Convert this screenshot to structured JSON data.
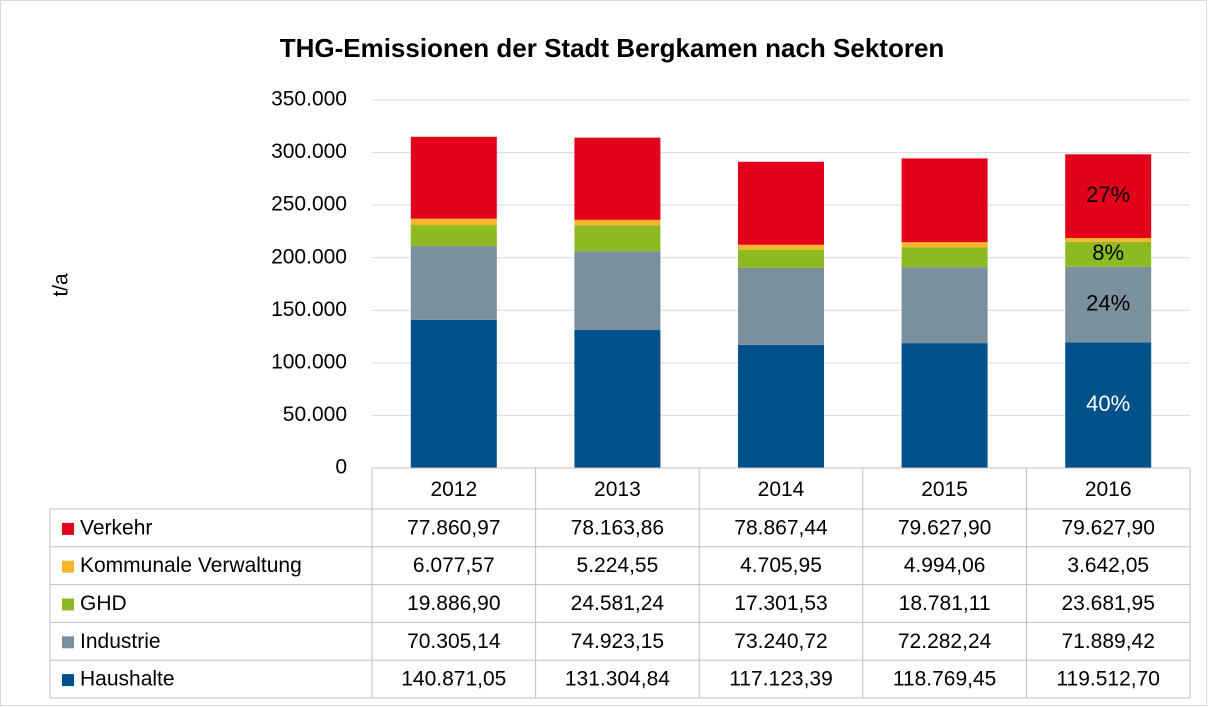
{
  "chart_data": {
    "type": "stacked_bar",
    "title": "THG-Emissionen der Stadt Bergkamen nach Sektoren",
    "y_label": "t/a",
    "categories": [
      "2012",
      "2013",
      "2014",
      "2015",
      "2016"
    ],
    "ylim": [
      0,
      350000
    ],
    "yticks": [
      0,
      {
        "value": 50000,
        "label": "50.000"
      },
      {
        "value": 100000,
        "label": "100.000"
      },
      {
        "value": 150000,
        "label": "150.000"
      },
      {
        "value": 200000,
        "label": "200.000"
      },
      {
        "value": 250000,
        "label": "250.000"
      },
      {
        "value": 300000,
        "label": "300.000"
      },
      {
        "value": 350000,
        "label": "350.000"
      }
    ],
    "grid": true,
    "series": [
      {
        "name": "Haushalte",
        "color": "#00508c",
        "values": [
          140871.05,
          131304.84,
          117123.39,
          118769.45,
          119512.7
        ],
        "value_labels": [
          "140.871,05",
          "131.304,84",
          "117.123,39",
          "118.769,45",
          "119.512,70"
        ],
        "annotation": "40%"
      },
      {
        "name": "Industrie",
        "color": "#7a909c",
        "values": [
          70305.14,
          74923.15,
          73240.72,
          72282.24,
          71889.42
        ],
        "value_labels": [
          "70.305,14",
          "74.923,15",
          "73.240,72",
          "72.282,24",
          "71.889,42"
        ],
        "annotation": "24%"
      },
      {
        "name": "GHD",
        "color": "#8cba23",
        "values": [
          19886.9,
          24581.24,
          17301.53,
          18781.11,
          23681.95
        ],
        "value_labels": [
          "19.886,90",
          "24.581,24",
          "17.301,53",
          "18.781,11",
          "23.681,95"
        ],
        "annotation": "8%"
      },
      {
        "name": "Kommunale Verwaltung",
        "color": "#f7b52c",
        "values": [
          6077.57,
          5224.55,
          4705.95,
          4994.06,
          3642.05
        ],
        "value_labels": [
          "6.077,57",
          "5.224,55",
          "4.705,95",
          "4.994,06",
          "3.642,05"
        ]
      },
      {
        "name": "Verkehr",
        "color": "#e2001a",
        "values": [
          77860.97,
          78163.86,
          78867.44,
          79627.9,
          79627.9
        ],
        "value_labels": [
          "77.860,97",
          "78.163,86",
          "78.867,44",
          "79.627,90",
          "79.627,90"
        ],
        "annotation": "27%"
      }
    ]
  }
}
